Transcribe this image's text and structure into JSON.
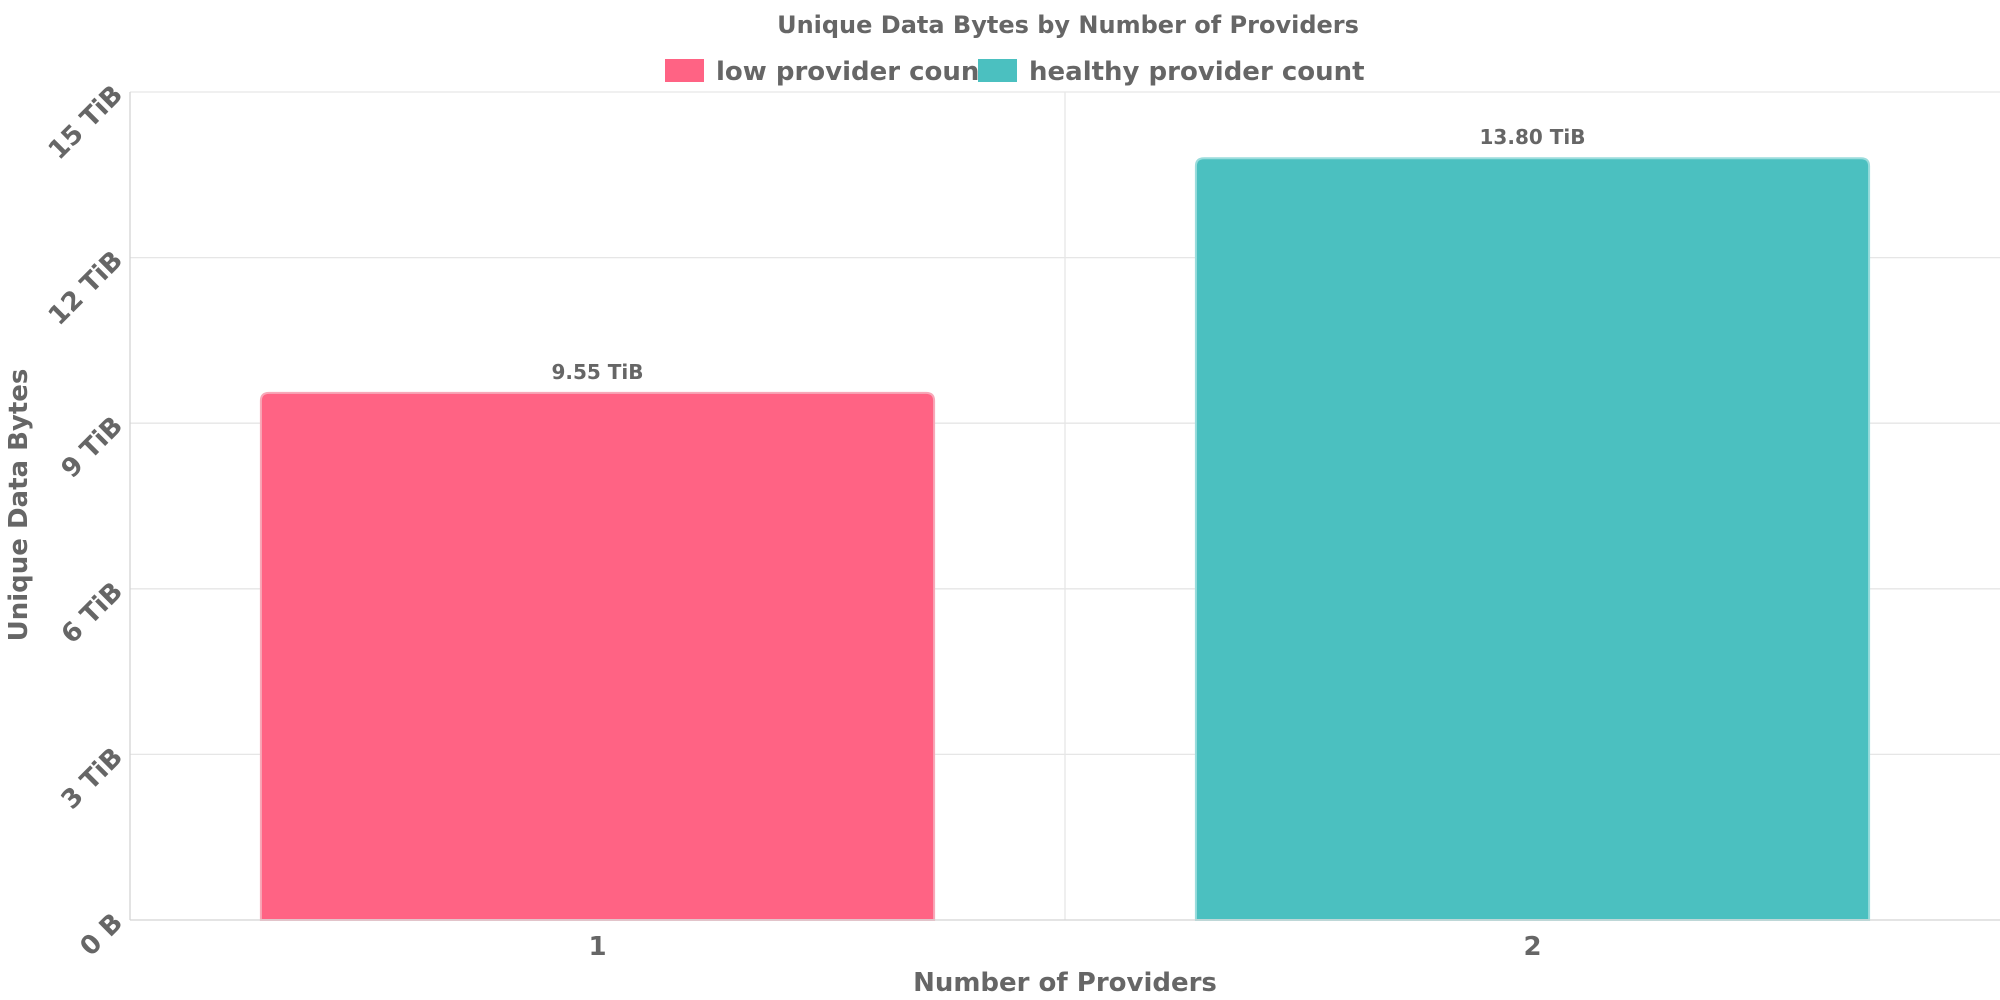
{
  "chart_data": {
    "type": "bar",
    "title": "Unique Data Bytes by Number of Providers",
    "xlabel": "Number of Providers",
    "ylabel": "Unique Data Bytes",
    "categories": [
      "1",
      "2"
    ],
    "values": [
      9.55,
      13.8
    ],
    "value_unit": "TiB",
    "data_labels": [
      "9.55 TiB",
      "13.80 TiB"
    ],
    "bar_colors": [
      "#ff6384",
      "#4bc0c0"
    ],
    "bar_border_colors": [
      "#f8a8b8",
      "#9adcdc"
    ],
    "ylim": [
      0,
      15
    ],
    "yticks": [
      0,
      3,
      6,
      9,
      12,
      15
    ],
    "ytick_labels": [
      "0 B",
      "3 TiB",
      "6 TiB",
      "9 TiB",
      "12 TiB",
      "15 TiB"
    ],
    "legend": {
      "placement": "top-center",
      "entries": [
        {
          "label": "low provider count",
          "color": "#ff6384"
        },
        {
          "label": "healthy provider count",
          "color": "#4bc0c0"
        }
      ]
    },
    "grid": true,
    "text_color": "#666666",
    "grid_color": "#e6e6e6"
  }
}
